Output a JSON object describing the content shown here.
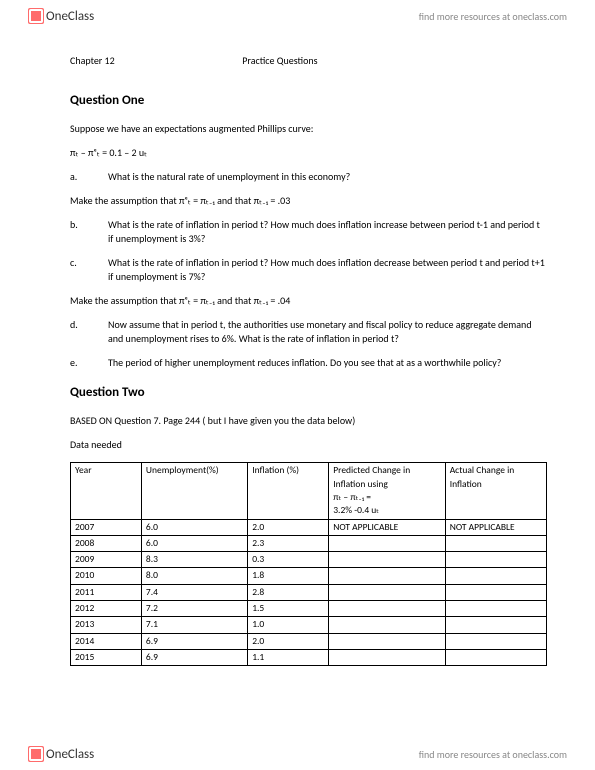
{
  "brand": {
    "name": "OneClass",
    "tagline": "find more resources at oneclass.com"
  },
  "chapter": {
    "label": "Chapter 12",
    "subtitle": "Practice Questions"
  },
  "q1": {
    "heading": "Question One",
    "intro": "Suppose   we have an expectations augmented Phillips curve:",
    "equation": "πₜ – πᵉₜ  =   0.1 – 2 uₜ",
    "a": "What is the natural rate of unemployment in this economy?",
    "assume1": "Make the assumption that πᵉₜ = πₜ₋₁  and that  πₜ₋₁ = .03",
    "b": "What is the rate of inflation in period t? How much does inflation increase between period t-1 and period t if unemployment is 3%?",
    "c": "What is the rate of inflation in period t? How much does inflation decrease between period t and period t+1 if unemployment is 7%?",
    "assume2": "Make the assumption that πᵉₜ = πₜ₋₁  and that  πₜ₋₁ = .04",
    "d": "Now assume that in period t, the authorities use monetary and fiscal policy to reduce aggregate demand and unemployment rises to 6%.  What is the rate of inflation in period t?",
    "e": "The period of higher unemployment reduces inflation. Do you see that at as a worthwhile policy?"
  },
  "q2": {
    "heading": "Question Two",
    "basis": "BASED ON Question 7. Page 244  ( but I have given you the data below)",
    "data_label": "Data needed",
    "columns": {
      "year": "Year",
      "unemp": "Unemployment(%)",
      "infl": "Inflation (%)",
      "pred_l1": "Predicted Change in Inflation using",
      "pred_l2": "πₜ – πₜ₋₁ =",
      "pred_l3": "3.2% -0.4 uₜ",
      "act": "Actual Change in Inflation"
    },
    "rows": [
      {
        "year": "2007",
        "unemp": "6.0",
        "infl": "2.0",
        "pred": "NOT APPLICABLE",
        "act": "NOT APPLICABLE"
      },
      {
        "year": "2008",
        "unemp": "6.0",
        "infl": "2.3",
        "pred": "",
        "act": ""
      },
      {
        "year": "2009",
        "unemp": "8.3",
        "infl": "0.3",
        "pred": "",
        "act": ""
      },
      {
        "year": "2010",
        "unemp": "8.0",
        "infl": "1.8",
        "pred": "",
        "act": ""
      },
      {
        "year": "2011",
        "unemp": "7.4",
        "infl": "2.8",
        "pred": "",
        "act": ""
      },
      {
        "year": "2012",
        "unemp": "7.2",
        "infl": "1.5",
        "pred": "",
        "act": ""
      },
      {
        "year": "2013",
        "unemp": "7.1",
        "infl": "1.0",
        "pred": "",
        "act": ""
      },
      {
        "year": "2014",
        "unemp": "6.9",
        "infl": "2.0",
        "pred": "",
        "act": ""
      },
      {
        "year": "2015",
        "unemp": "6.9",
        "infl": "1.1",
        "pred": "",
        "act": ""
      }
    ]
  }
}
